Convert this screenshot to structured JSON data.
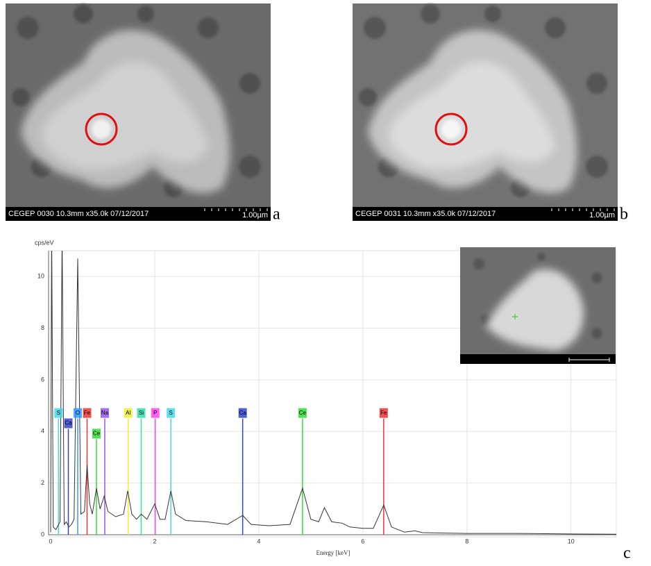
{
  "panels": [
    {
      "caption": "CEGEP 0030 10.3mm x35.0k 07/12/2017",
      "scale": "1.00µm",
      "label": "a"
    },
    {
      "caption": "CEGEP 0031 10.3mm x35.0k 07/12/2017",
      "scale": "1.00µm",
      "label": "b"
    }
  ],
  "chart_data": {
    "type": "line",
    "title": "cps/eV",
    "x_label": "Energy [keV]",
    "panel_label": "c",
    "color": "#333333",
    "x": [
      0.0,
      0.02,
      0.05,
      0.1,
      0.18,
      0.22,
      0.26,
      0.3,
      0.35,
      0.4,
      0.45,
      0.52,
      0.58,
      0.65,
      0.7,
      0.75,
      0.8,
      0.88,
      0.95,
      1.03,
      1.1,
      1.25,
      1.4,
      1.48,
      1.56,
      1.65,
      1.74,
      1.85,
      2.0,
      2.1,
      2.2,
      2.31,
      2.4,
      2.6,
      3.0,
      3.4,
      3.69,
      3.85,
      4.2,
      4.6,
      4.84,
      5.0,
      5.15,
      5.26,
      5.4,
      5.6,
      5.75,
      6.0,
      6.2,
      6.4,
      6.55,
      6.8,
      7.0,
      7.15,
      8.0,
      9.0,
      10.0,
      10.9
    ],
    "values": [
      0.1,
      11.5,
      0.3,
      0.2,
      0.5,
      11.5,
      0.4,
      0.5,
      0.3,
      0.4,
      0.6,
      10.7,
      0.8,
      0.9,
      2.7,
      1.2,
      0.8,
      1.8,
      1.0,
      1.5,
      0.9,
      0.7,
      0.8,
      1.7,
      0.8,
      0.6,
      0.8,
      0.6,
      1.2,
      0.6,
      0.6,
      1.7,
      0.8,
      0.55,
      0.5,
      0.4,
      0.75,
      0.4,
      0.35,
      0.4,
      1.8,
      0.6,
      0.5,
      1.05,
      0.5,
      0.45,
      0.3,
      0.25,
      0.25,
      1.15,
      0.3,
      0.1,
      0.15,
      0.08,
      0.05,
      0.05,
      0.03,
      0.02
    ],
    "peaks": [
      {
        "label": "S",
        "energy": 0.15,
        "height": 4.5,
        "color": "#44d8e8"
      },
      {
        "label": "Ca",
        "energy": 0.34,
        "height": 4.1,
        "color": "#3344cc"
      },
      {
        "label": "O",
        "energy": 0.52,
        "height": 4.5,
        "color": "#3399ff"
      },
      {
        "label": "Fe",
        "energy": 0.7,
        "height": 4.5,
        "color": "#ee3333"
      },
      {
        "label": "Ce",
        "energy": 0.88,
        "height": 3.7,
        "color": "#33dd33"
      },
      {
        "label": "Na",
        "energy": 1.04,
        "height": 4.5,
        "color": "#9955ee"
      },
      {
        "label": "Al",
        "energy": 1.49,
        "height": 4.5,
        "color": "#eeee33"
      },
      {
        "label": "Si",
        "energy": 1.74,
        "height": 4.5,
        "color": "#33ddaa"
      },
      {
        "label": "P",
        "energy": 2.01,
        "height": 4.5,
        "color": "#ff44ee"
      },
      {
        "label": "S",
        "energy": 2.31,
        "height": 4.5,
        "color": "#44d8e8"
      },
      {
        "label": "Ca",
        "energy": 3.69,
        "height": 4.5,
        "color": "#3344cc"
      },
      {
        "label": "Ce",
        "energy": 4.84,
        "height": 4.5,
        "color": "#33dd33"
      },
      {
        "label": "Fe",
        "energy": 6.4,
        "height": 4.5,
        "color": "#ee3333"
      }
    ],
    "xlim": [
      0,
      10.87
    ],
    "ylim": [
      0,
      11
    ],
    "xticks": [
      0,
      2,
      4,
      6,
      8,
      10
    ],
    "yticks": [
      0,
      2,
      4,
      6,
      8,
      10
    ],
    "grid": true
  }
}
